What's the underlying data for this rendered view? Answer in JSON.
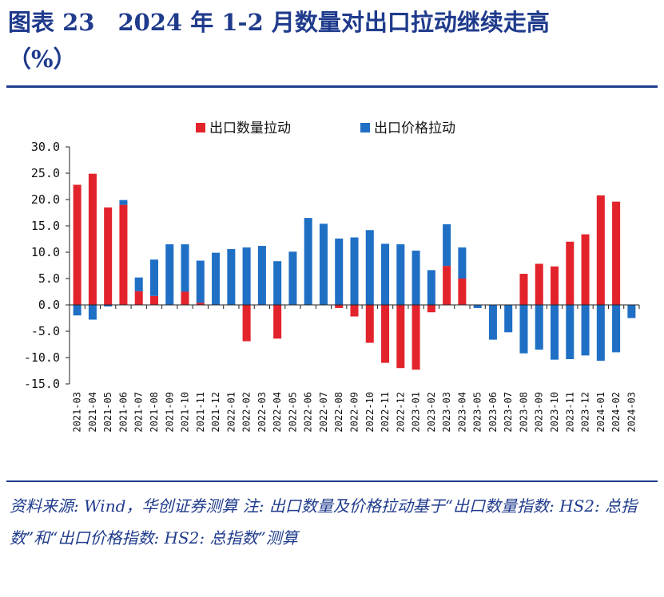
{
  "header": {
    "title": "图表 23　2024 年 1-2 月数量对出口拉动继续走高",
    "unit": "（%）"
  },
  "footer": {
    "source": "资料来源: Wind，华创证券测算  注: 出口数量及价格拉动基于“出口数量指数: HS2: 总指数”和“出口价格指数: HS2: 总指数”测算"
  },
  "colors": {
    "quantity": "#e3232c",
    "price": "#1f6fc5",
    "accent": "#1f3b8c"
  },
  "chart_data": {
    "type": "bar",
    "stacked": true,
    "legend_position": "top",
    "ylim": [
      -15,
      30
    ],
    "yticks": [
      "30.0",
      "25.0",
      "20.0",
      "15.0",
      "10.0",
      "5.0",
      "0.0",
      "-5.0",
      "-10.0",
      "-15.0"
    ],
    "categories": [
      "2021-03",
      "2021-04",
      "2021-05",
      "2021-06",
      "2021-07",
      "2021-08",
      "2021-09",
      "2021-10",
      "2021-11",
      "2021-12",
      "2022-01",
      "2022-02",
      "2022-03",
      "2022-04",
      "2022-05",
      "2022-06",
      "2022-07",
      "2022-08",
      "2022-09",
      "2022-10",
      "2022-11",
      "2022-12",
      "2023-01",
      "2023-02",
      "2023-03",
      "2023-04",
      "2023-05",
      "2023-06",
      "2023-07",
      "2023-08",
      "2023-09",
      "2023-10",
      "2023-11",
      "2023-12",
      "2024-01",
      "2024-02",
      "2024-03"
    ],
    "series": [
      {
        "name": "出口数量拉动",
        "color_key": "quantity",
        "values": [
          22.8,
          24.9,
          18.5,
          19.0,
          2.6,
          1.7,
          0.0,
          2.5,
          0.4,
          0.0,
          0.0,
          -6.9,
          0.0,
          -6.4,
          0.0,
          0.0,
          0.0,
          -0.6,
          -2.2,
          -7.2,
          -11.0,
          -12.0,
          -12.3,
          -1.4,
          7.4,
          5.0,
          0.0,
          0.0,
          0.0,
          5.9,
          7.8,
          7.3,
          12.0,
          13.4,
          20.8,
          19.6,
          0.0
        ]
      },
      {
        "name": "出口价格拉动",
        "color_key": "price",
        "values": [
          -2.0,
          -2.8,
          -0.3,
          0.9,
          2.6,
          6.9,
          11.5,
          9.0,
          8.0,
          9.9,
          10.6,
          10.9,
          11.2,
          8.3,
          10.1,
          16.5,
          15.4,
          12.6,
          12.8,
          14.2,
          11.6,
          11.5,
          10.3,
          6.6,
          7.9,
          5.9,
          -0.6,
          -6.6,
          -5.2,
          -9.2,
          -8.5,
          -10.4,
          -10.3,
          -9.6,
          -10.6,
          -9.0,
          -2.5
        ]
      }
    ]
  }
}
